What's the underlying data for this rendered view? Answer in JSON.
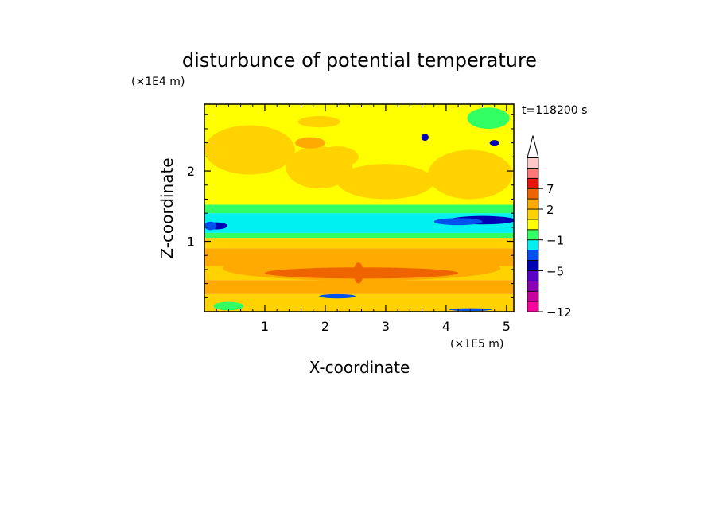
{
  "chart_data": {
    "type": "heatmap",
    "title": "disturbunce of potential temperature",
    "time_label": "t=118200 s",
    "xlabel": "X-coordinate",
    "ylabel": "Z-coordinate",
    "x_unit": "(×1E5 m)",
    "y_unit": "(×1E4 m)",
    "xlim": [
      0,
      5.12
    ],
    "ylim": [
      0,
      2.95
    ],
    "x_ticks": [
      {
        "value": 1,
        "label": "1"
      },
      {
        "value": 2,
        "label": "2"
      },
      {
        "value": 3,
        "label": "3"
      },
      {
        "value": 4,
        "label": "4"
      },
      {
        "value": 5,
        "label": "5"
      }
    ],
    "y_ticks": [
      {
        "value": 1,
        "label": "1"
      },
      {
        "value": 2,
        "label": "2"
      }
    ],
    "colorbar": {
      "levels": [
        {
          "color": "#ff00a0"
        },
        {
          "color": "#c800a0"
        },
        {
          "color": "#8c00b4"
        },
        {
          "color": "#5a00c8"
        },
        {
          "color": "#0000b4"
        },
        {
          "color": "#0050f0"
        },
        {
          "color": "#00f0f0"
        },
        {
          "color": "#32ff64"
        },
        {
          "color": "#ffff00"
        },
        {
          "color": "#ffd200"
        },
        {
          "color": "#ffaa00"
        },
        {
          "color": "#f06400"
        },
        {
          "color": "#e61400"
        },
        {
          "color": "#ff7878"
        },
        {
          "color": "#ffc8c8"
        }
      ],
      "tick_labels": [
        {
          "label": "7",
          "after_level": 12
        },
        {
          "label": "2",
          "after_level": 10
        },
        {
          "label": "−1",
          "after_level": 7
        },
        {
          "label": "−5",
          "after_level": 4
        },
        {
          "label": "−12",
          "after_level": 0
        }
      ]
    },
    "bands": [
      {
        "z0": 0.0,
        "z1": 0.25,
        "level": 9
      },
      {
        "z0": 0.25,
        "z1": 0.45,
        "level": 10
      },
      {
        "z0": 0.45,
        "z1": 0.65,
        "level": 9
      },
      {
        "z0": 0.65,
        "z1": 0.9,
        "level": 10
      },
      {
        "z0": 0.9,
        "z1": 1.05,
        "level": 9
      },
      {
        "z0": 1.05,
        "z1": 1.12,
        "level": 7
      },
      {
        "z0": 1.12,
        "z1": 1.4,
        "level": 6
      },
      {
        "z0": 1.4,
        "z1": 1.52,
        "level": 7
      },
      {
        "z0": 1.52,
        "z1": 2.95,
        "level": 8
      }
    ],
    "patches": [
      {
        "x": 2.6,
        "z": 0.62,
        "rx": 2.3,
        "rz": 0.18,
        "level": 10
      },
      {
        "x": 2.6,
        "z": 0.55,
        "rx": 1.6,
        "rz": 0.08,
        "level": 11
      },
      {
        "x": 2.55,
        "z": 0.55,
        "rx": 0.08,
        "rz": 0.15,
        "level": 11
      },
      {
        "x": 0.2,
        "z": 1.22,
        "rx": 0.18,
        "rz": 0.05,
        "level": 4
      },
      {
        "x": 0.1,
        "z": 1.22,
        "rx": 0.1,
        "rz": 0.06,
        "level": 5
      },
      {
        "x": 4.6,
        "z": 1.3,
        "rx": 0.55,
        "rz": 0.06,
        "level": 4
      },
      {
        "x": 4.2,
        "z": 1.28,
        "rx": 0.4,
        "rz": 0.05,
        "level": 5
      },
      {
        "x": 2.2,
        "z": 0.22,
        "rx": 0.3,
        "rz": 0.03,
        "level": 5
      },
      {
        "x": 4.4,
        "z": 0.03,
        "rx": 0.35,
        "rz": 0.02,
        "level": 5
      },
      {
        "x": 3.65,
        "z": 2.48,
        "rx": 0.06,
        "rz": 0.05,
        "level": 4
      },
      {
        "x": 4.8,
        "z": 2.4,
        "rx": 0.08,
        "rz": 0.04,
        "level": 4
      },
      {
        "x": 0.75,
        "z": 2.3,
        "rx": 0.75,
        "rz": 0.35,
        "level": 9
      },
      {
        "x": 1.9,
        "z": 2.05,
        "rx": 0.55,
        "rz": 0.3,
        "level": 9
      },
      {
        "x": 3.0,
        "z": 1.85,
        "rx": 0.8,
        "rz": 0.25,
        "level": 9
      },
      {
        "x": 4.4,
        "z": 1.95,
        "rx": 0.7,
        "rz": 0.35,
        "level": 9
      },
      {
        "x": 1.75,
        "z": 2.4,
        "rx": 0.25,
        "rz": 0.08,
        "level": 10
      },
      {
        "x": 2.2,
        "z": 2.2,
        "rx": 0.35,
        "rz": 0.15,
        "level": 9
      },
      {
        "x": 0.4,
        "z": 0.08,
        "rx": 0.25,
        "rz": 0.06,
        "level": 7
      },
      {
        "x": 4.7,
        "z": 2.75,
        "rx": 0.35,
        "rz": 0.15,
        "level": 7
      },
      {
        "x": 1.9,
        "z": 2.7,
        "rx": 0.35,
        "rz": 0.08,
        "level": 9
      }
    ]
  }
}
